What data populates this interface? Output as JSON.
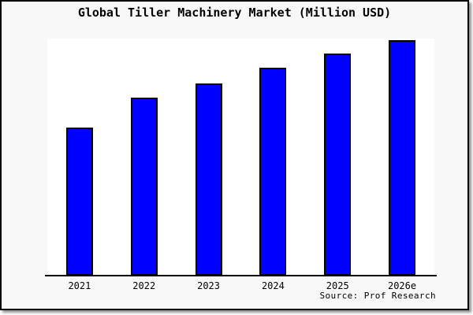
{
  "chart_data": {
    "type": "bar",
    "title": "Global Tiller Machinery Market (Million USD)",
    "categories": [
      "2021",
      "2022",
      "2023",
      "2024",
      "2025",
      "2026e"
    ],
    "values": [
      62.9,
      75.6,
      81.6,
      88.3,
      94.3,
      100
    ],
    "values_note": "y-axis has no tick labels or gridlines; values are relative estimates of bar heights indexed to 2026e = 100",
    "xlabel": "",
    "ylabel": "",
    "ylim": [
      0,
      100.7
    ],
    "grid": false,
    "legend": null,
    "source": "Source: Prof Research",
    "colors": {
      "bar_fill": "#0000ff",
      "bar_border": "#000000",
      "plot_bg": "#ffffff",
      "figure_bg": "#f8f8f8",
      "frame_border": "#000000",
      "text": "#000000"
    }
  }
}
